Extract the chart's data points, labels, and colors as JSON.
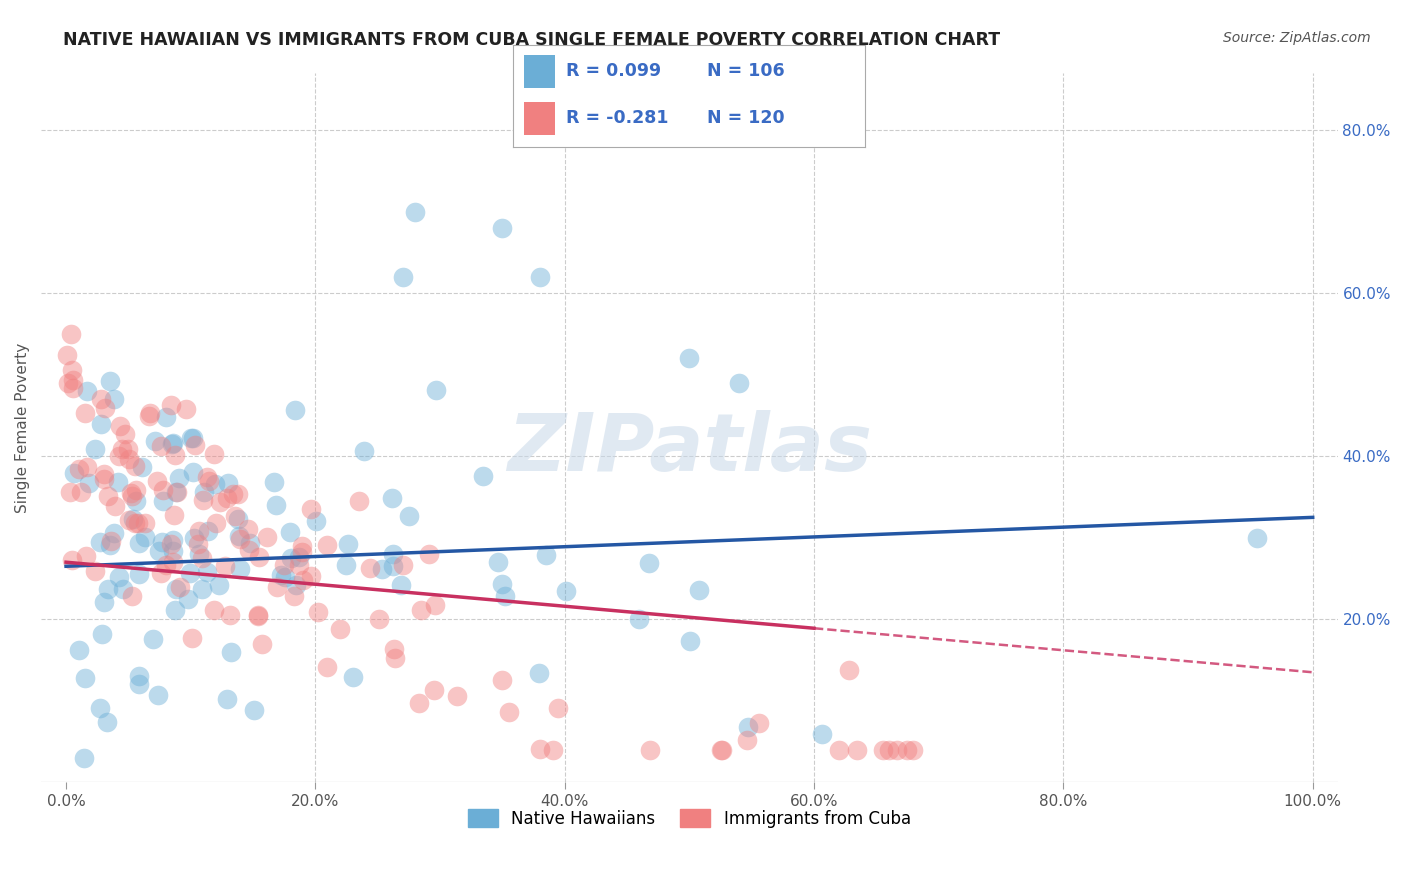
{
  "title": "NATIVE HAWAIIAN VS IMMIGRANTS FROM CUBA SINGLE FEMALE POVERTY CORRELATION CHART",
  "source": "Source: ZipAtlas.com",
  "ylabel": "Single Female Poverty",
  "watermark": "ZIPatlas",
  "xlim": [
    -0.02,
    1.02
  ],
  "ylim": [
    0.0,
    0.87
  ],
  "x_ticks": [
    0.0,
    0.2,
    0.4,
    0.6,
    0.8,
    1.0
  ],
  "x_tick_labels": [
    "0.0%",
    "20.0%",
    "40.0%",
    "60.0%",
    "80.0%",
    "100.0%"
  ],
  "y_ticks_right": [
    0.2,
    0.4,
    0.6,
    0.8
  ],
  "y_tick_labels_right": [
    "20.0%",
    "40.0%",
    "60.0%",
    "80.0%"
  ],
  "series1_label": "Native Hawaiians",
  "series1_color": "#6BAED6",
  "series1_R": "0.099",
  "series1_N": "106",
  "series2_label": "Immigrants from Cuba",
  "series2_color": "#F08080",
  "series2_R": "-0.281",
  "series2_N": "120",
  "legend_R_color": "#3A6BC4",
  "trendline1_color": "#2457A4",
  "trendline2_color": "#C83060",
  "background_color": "#FFFFFF",
  "grid_color": "#CCCCCC",
  "title_color": "#222222",
  "trend1_x0": 0.0,
  "trend1_y0": 0.265,
  "trend1_x1": 1.0,
  "trend1_y1": 0.325,
  "trend2_x0": 0.0,
  "trend2_y0": 0.27,
  "trend2_x1": 1.0,
  "trend2_y1": 0.135,
  "trend2_solid_end": 0.6
}
